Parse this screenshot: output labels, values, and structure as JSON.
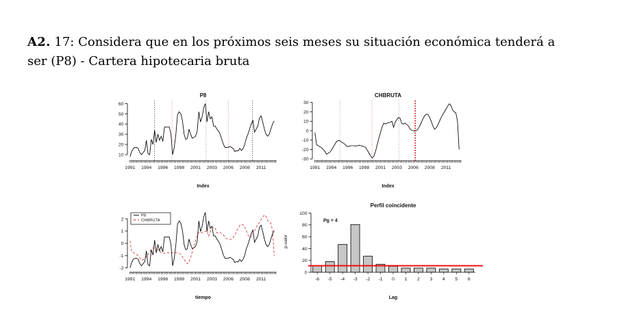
{
  "heading": {
    "bold": "A2.",
    "rest": " 17: Considera que en los próximos seis meses su situación económica tenderá a ser (P8) - Cartera hipotecaria bruta"
  },
  "colors": {
    "series_black": "#000000",
    "series_red": "#cc3333",
    "vline_black": "#000000",
    "vline_salmon": "#cc7a6a",
    "vline_gray": "#949494",
    "vline_red_bold": "#cc0000",
    "bar_fill": "#c6c6c6",
    "bar_stroke": "#000000",
    "hline_red": "#ee1010"
  },
  "time_axis": {
    "positions": [
      1991,
      1993.5,
      1996,
      1998.5,
      2001,
      2003.5,
      2006,
      2008.5,
      2011
    ],
    "labels": [
      "1991",
      "1994",
      "1996",
      "1998",
      "2001",
      "2003",
      "2006",
      "2008",
      "2011"
    ],
    "minor_start": 1991,
    "minor_step": 0.25,
    "minor_count": 90
  },
  "chart_data": [
    {
      "type": "line",
      "title": "P8",
      "xlabel": "Index",
      "x_start": 1991,
      "x_step": 0.25,
      "xlim": [
        1990.6,
        2013.7
      ],
      "ylim": [
        4,
        63
      ],
      "yticks": [
        10,
        20,
        30,
        40,
        50,
        60
      ],
      "values": [
        8,
        13,
        16,
        17,
        17,
        16,
        12,
        10,
        12,
        14,
        24,
        11,
        10,
        25,
        20,
        34,
        22,
        30,
        24,
        28,
        23,
        37,
        37,
        37,
        37,
        30,
        10,
        17,
        30,
        49,
        52,
        50,
        43,
        30,
        25,
        26,
        35,
        30,
        26,
        27,
        28,
        33,
        52,
        42,
        47,
        56,
        60,
        42,
        52,
        45,
        47,
        38,
        38,
        35,
        33,
        30,
        25,
        20,
        17,
        17,
        17,
        18,
        17,
        16,
        13,
        14,
        13.5,
        16,
        14,
        16,
        20,
        26,
        30,
        35,
        40,
        43.5,
        32,
        35,
        38,
        46,
        48,
        42,
        35,
        30,
        28,
        30,
        35,
        40,
        43
      ],
      "vlines": [
        {
          "x": 1994.75,
          "color": "black"
        },
        {
          "x": 1997.4,
          "color": "salmon"
        },
        {
          "x": 2002.6,
          "color": "gray"
        },
        {
          "x": 2006.0,
          "color": "salmon"
        },
        {
          "x": 2009.7,
          "color": "black"
        }
      ]
    },
    {
      "type": "line",
      "title": "CHBRUTA",
      "xlabel": "Index",
      "x_start": 1991,
      "x_step": 0.25,
      "xlim": [
        1990.6,
        2013.7
      ],
      "ylim": [
        -32,
        32
      ],
      "yticks": [
        -30,
        -20,
        -10,
        0,
        10,
        20,
        30
      ],
      "values": [
        -2,
        -15,
        -16,
        -17,
        -18,
        -20,
        -22,
        -25,
        -24,
        -23,
        -21,
        -18,
        -15,
        -12,
        -10.5,
        -10.5,
        -12,
        -13,
        -14,
        -16,
        -17,
        -16.5,
        -16,
        -16,
        -16,
        -16.5,
        -16,
        -15.5,
        -16,
        -16.5,
        -17,
        -18,
        -21,
        -24,
        -27,
        -29,
        -27,
        -22,
        -15,
        -8,
        -2,
        4,
        8,
        7,
        8,
        8.5,
        9,
        10,
        3.5,
        9,
        12,
        14,
        13,
        7.5,
        7,
        8,
        6.5,
        5,
        2,
        0.5,
        0,
        -0.5,
        0,
        2,
        5,
        9,
        13,
        16,
        17.5,
        17,
        14,
        10,
        5,
        1.5,
        3,
        6,
        10,
        14,
        17,
        20,
        23,
        26,
        28.5,
        27,
        22,
        20,
        19,
        10,
        -20
      ],
      "vlines": [
        {
          "x": 1994.8,
          "color": "gray"
        },
        {
          "x": 1999.7,
          "color": "salmon"
        },
        {
          "x": 2003.8,
          "color": "gray"
        },
        {
          "x": 2006.3,
          "color": "red-bold"
        }
      ]
    },
    {
      "type": "multiline-standardized",
      "title": "",
      "xlabel": "tiempo",
      "x_start": 1991,
      "x_step": 0.25,
      "xlim": [
        1990.6,
        2013.7
      ],
      "ylim": [
        -2.35,
        2.55
      ],
      "yticks": [
        -2,
        -1,
        0,
        1,
        2
      ],
      "series": [
        {
          "name": "P8",
          "ref": 0,
          "mean": 31,
          "sd": 11.5,
          "color": "#000000",
          "dash": ""
        },
        {
          "name": "CHBRUTA",
          "ref": 1,
          "mean": -5,
          "sd": 14.5,
          "color": "#cc3333",
          "dash": "3.5,2.5"
        }
      ],
      "legend": [
        "P8",
        "CHBRUTA"
      ]
    },
    {
      "type": "bar",
      "title": "Perfil coincidente",
      "xlabel": "Lag",
      "ylabel": "p-valor",
      "categories": [
        "-6",
        "-5",
        "-4",
        "-3",
        "-2",
        "-1",
        "0",
        "1",
        "2",
        "3",
        "4",
        "5",
        "6"
      ],
      "values": [
        10.5,
        18,
        47,
        80.5,
        27,
        13.5,
        10,
        7,
        7,
        7,
        5.5,
        5.5,
        5.5
      ],
      "ylim": [
        0,
        104
      ],
      "yticks": [
        0,
        20,
        40,
        60,
        80,
        100
      ],
      "hline": 11,
      "annotation": "Pg = 4"
    }
  ]
}
